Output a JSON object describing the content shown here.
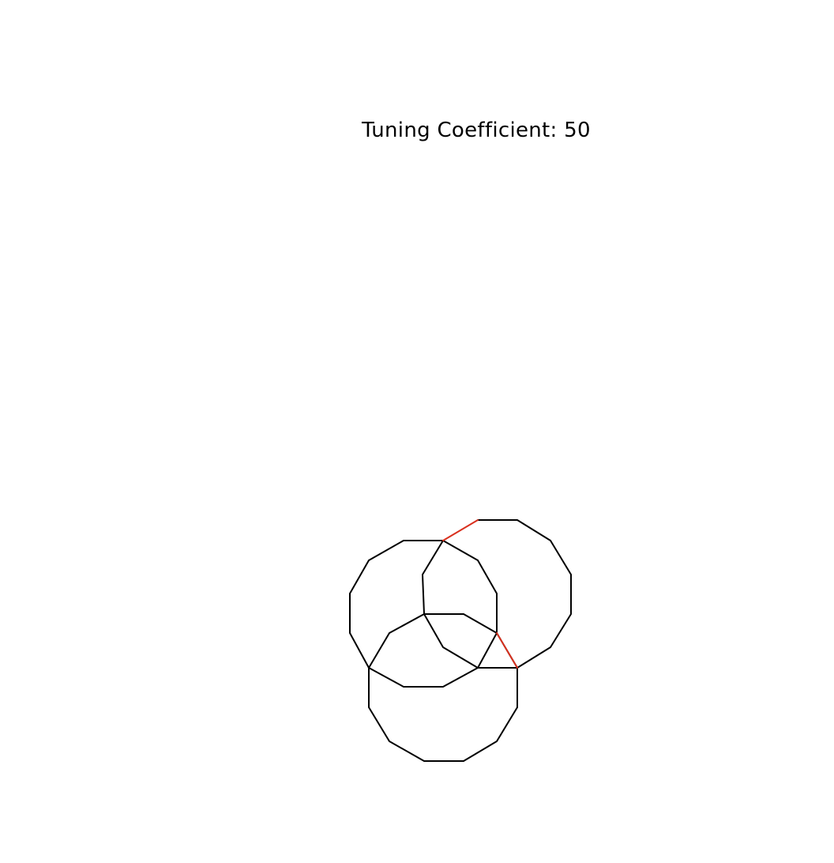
{
  "tuning": {
    "label": "Tuning Coefficient: 50"
  },
  "colors": {
    "stroke": "#000000",
    "highlight": "#d9301e",
    "background": "#ffffff"
  }
}
